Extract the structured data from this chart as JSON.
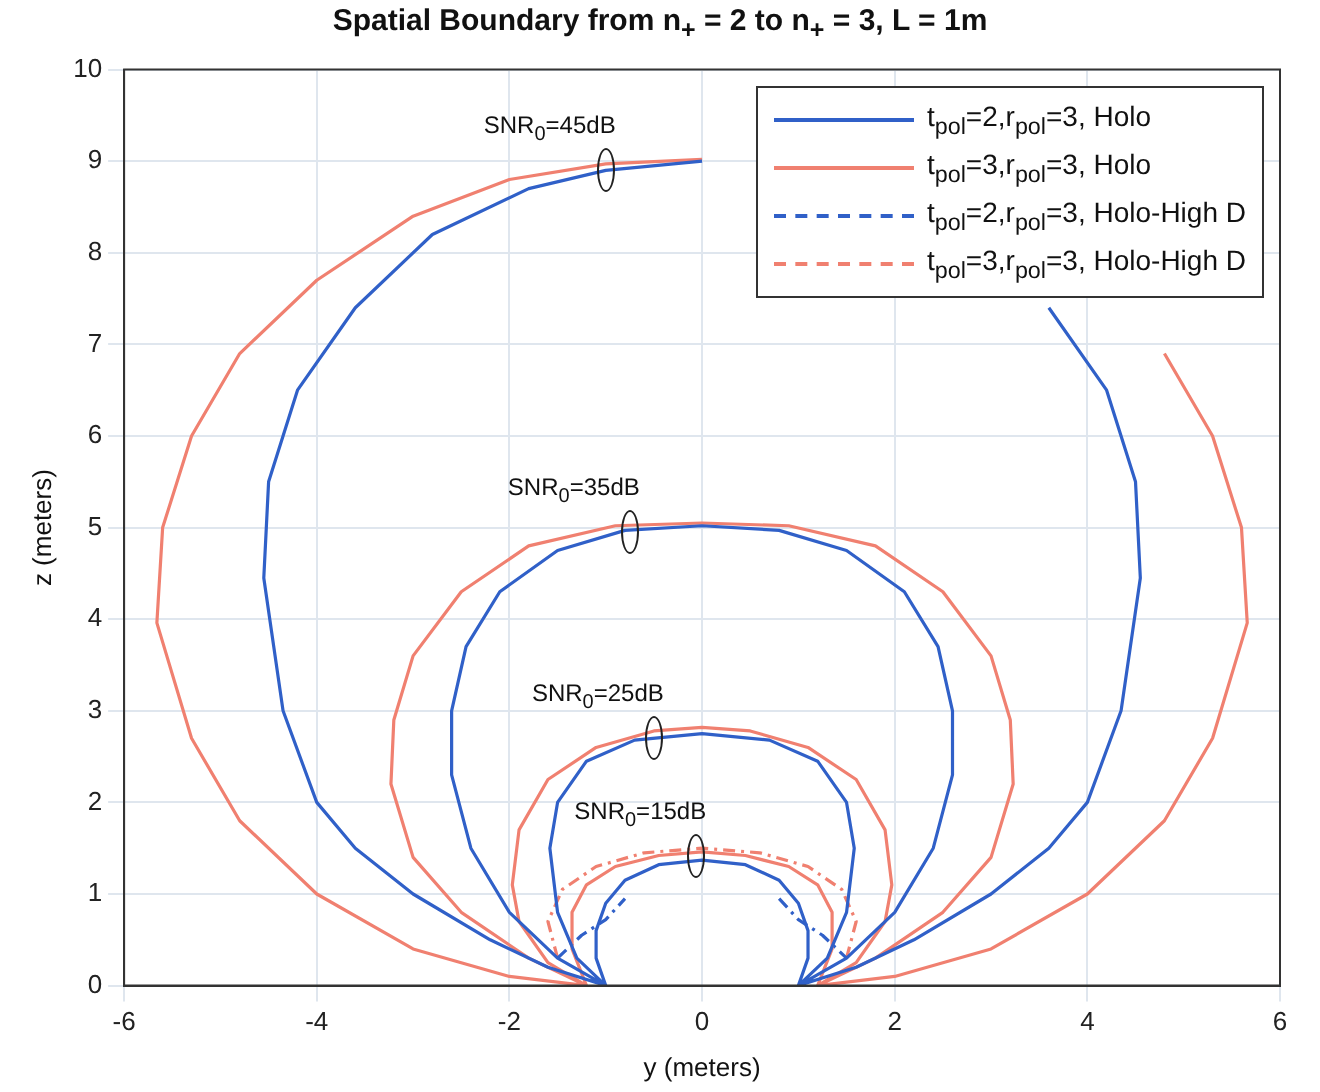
{
  "chart_data": {
    "type": "line",
    "title": "Spatial Boundary from n$_{+}$ = 2 to n$_{+}$ = 3, L = 1m",
    "xlabel": "y (meters)",
    "ylabel": "z (meters)",
    "xlim": [
      -6,
      6
    ],
    "xticks": [
      -6,
      -4,
      -2,
      0,
      2,
      4,
      6
    ],
    "ylim": [
      0,
      10
    ],
    "yticks": [
      0,
      1,
      2,
      3,
      4,
      5,
      6,
      7,
      8,
      9,
      10
    ],
    "grid": true,
    "legend": "top right",
    "series": [
      {
        "name": "t$_{pol}$=2,r$_{pol}$=3, Holo",
        "color": "#3060c8",
        "line_style": "solid",
        "x": [
          -1,
          -1.6,
          -2.2,
          -3.0,
          -3.6,
          -4.0,
          -4.35,
          -4.55,
          -4.5,
          -4.2,
          -3.6,
          -2.8,
          -1.8,
          -1,
          0,
          1,
          1.8,
          2.8,
          3.6,
          4.2,
          4.5,
          4.55,
          4.35,
          4.0,
          3.6,
          3.0,
          2.2,
          1.6,
          1,
          null,
          -1,
          -1.5,
          -2,
          -2.4,
          -2.6,
          -2.6,
          -2.45,
          -2.1,
          -1.5,
          -0.8,
          0,
          0.8,
          1.5,
          2.1,
          2.45,
          2.6,
          2.6,
          2.4,
          2,
          1.5,
          1,
          null,
          -1,
          -1.3,
          -1.5,
          -1.58,
          -1.5,
          -1.2,
          -0.7,
          0,
          0.7,
          1.2,
          1.5,
          1.58,
          1.5,
          1.3,
          1,
          null,
          -1,
          -1.1,
          -1.1,
          -1.0,
          -0.8,
          -0.45,
          0,
          0.45,
          0.8,
          1.0,
          1.1,
          1.1,
          1
        ],
        "values": [
          0,
          0.2,
          0.5,
          1,
          1.5,
          2,
          3,
          4.45,
          5.5,
          6.5,
          7.4,
          8.2,
          8.7,
          8.9,
          9,
          null,
          null,
          null,
          7.4,
          6.5,
          5.5,
          4.45,
          3,
          2,
          1.5,
          1,
          0.5,
          0.2,
          0,
          null,
          0,
          0.3,
          0.8,
          1.5,
          2.3,
          3,
          3.7,
          4.3,
          4.75,
          4.97,
          5.02,
          4.97,
          4.75,
          4.3,
          3.7,
          3,
          2.3,
          1.5,
          0.8,
          0.3,
          0,
          null,
          0,
          0.3,
          0.8,
          1.5,
          2,
          2.45,
          2.68,
          2.75,
          2.68,
          2.45,
          2,
          1.5,
          0.8,
          0.3,
          0,
          null,
          0,
          0.3,
          0.6,
          0.9,
          1.15,
          1.32,
          1.37,
          1.32,
          1.15,
          0.9,
          0.6,
          0.3,
          0
        ]
      },
      {
        "name": "t$_{pol}$=3,r$_{pol}$=3, Holo",
        "color": "#f08070",
        "line_style": "solid",
        "x": [
          -1.2,
          -2,
          -3,
          -4,
          -4.8,
          -5.3,
          -5.66,
          -5.6,
          -5.3,
          -4.8,
          -4,
          -3,
          -2,
          -1,
          0,
          1,
          2,
          3,
          4,
          4.8,
          5.3,
          5.6,
          5.66,
          5.3,
          4.8,
          4,
          3,
          2,
          1.2,
          null,
          -1.2,
          -1.8,
          -2.5,
          -3,
          -3.23,
          -3.2,
          -3,
          -2.5,
          -1.8,
          -0.9,
          0,
          0.9,
          1.8,
          2.5,
          3,
          3.2,
          3.23,
          3,
          2.5,
          1.8,
          1.2,
          null,
          -1.2,
          -1.6,
          -1.9,
          -1.97,
          -1.9,
          -1.6,
          -1.1,
          -0.5,
          0,
          0.5,
          1.1,
          1.6,
          1.9,
          1.97,
          1.9,
          1.6,
          1.2,
          null,
          -1.2,
          -1.35,
          -1.35,
          -1.2,
          -0.9,
          -0.45,
          0,
          0.45,
          0.9,
          1.2,
          1.35,
          1.35,
          1.2
        ],
        "values": [
          0,
          0.1,
          0.4,
          1,
          1.8,
          2.7,
          3.96,
          5,
          6,
          6.9,
          7.7,
          8.4,
          8.8,
          8.97,
          9.02,
          null,
          null,
          null,
          null,
          6.9,
          6,
          5,
          3.96,
          2.7,
          1.8,
          1,
          0.4,
          0.1,
          0,
          null,
          0,
          0.3,
          0.8,
          1.4,
          2.2,
          2.9,
          3.6,
          4.3,
          4.8,
          5.02,
          5.05,
          5.02,
          4.8,
          4.3,
          3.6,
          2.9,
          2.2,
          1.4,
          0.8,
          0.3,
          0,
          null,
          0,
          0.25,
          0.7,
          1.1,
          1.7,
          2.25,
          2.6,
          2.78,
          2.82,
          2.78,
          2.6,
          2.25,
          1.7,
          1.1,
          0.7,
          0.25,
          0,
          null,
          0,
          0.4,
          0.8,
          1.1,
          1.3,
          1.42,
          1.46,
          1.42,
          1.3,
          1.1,
          0.8,
          0.4,
          0
        ]
      },
      {
        "name": "t$_{pol}$=2,r$_{pol}$=3, Holo-High D",
        "color": "#3060c8",
        "line_style": "dashed",
        "x": [
          -1.5,
          -1.25,
          -1.0,
          -0.8,
          null,
          0.8,
          1.0,
          1.25,
          1.5
        ],
        "values": [
          0.3,
          0.55,
          0.72,
          0.95,
          null,
          0.95,
          0.72,
          0.55,
          0.3
        ]
      },
      {
        "name": "t$_{pol}$=3,r$_{pol}$=3, Holo-High D",
        "color": "#f08070",
        "line_style": "dashed",
        "x": [
          -1.5,
          -1.6,
          -1.45,
          -1.1,
          -0.6,
          0,
          0.6,
          1.1,
          1.45,
          1.6,
          1.5
        ],
        "values": [
          0.3,
          0.7,
          1.05,
          1.3,
          1.45,
          1.5,
          1.45,
          1.3,
          1.05,
          0.7,
          0.3
        ]
      }
    ],
    "annotations": [
      {
        "text": "SNR$_{0}$=45dB",
        "x": -1,
        "y": 8.9
      },
      {
        "text": "SNR$_{0}$=35dB",
        "x": -0.75,
        "y": 4.95
      },
      {
        "text": "SNR$_{0}$=25dB",
        "x": -0.5,
        "y": 2.7
      },
      {
        "text": "SNR$_{0}$=15dB",
        "x": -0.06,
        "y": 1.42
      }
    ]
  }
}
